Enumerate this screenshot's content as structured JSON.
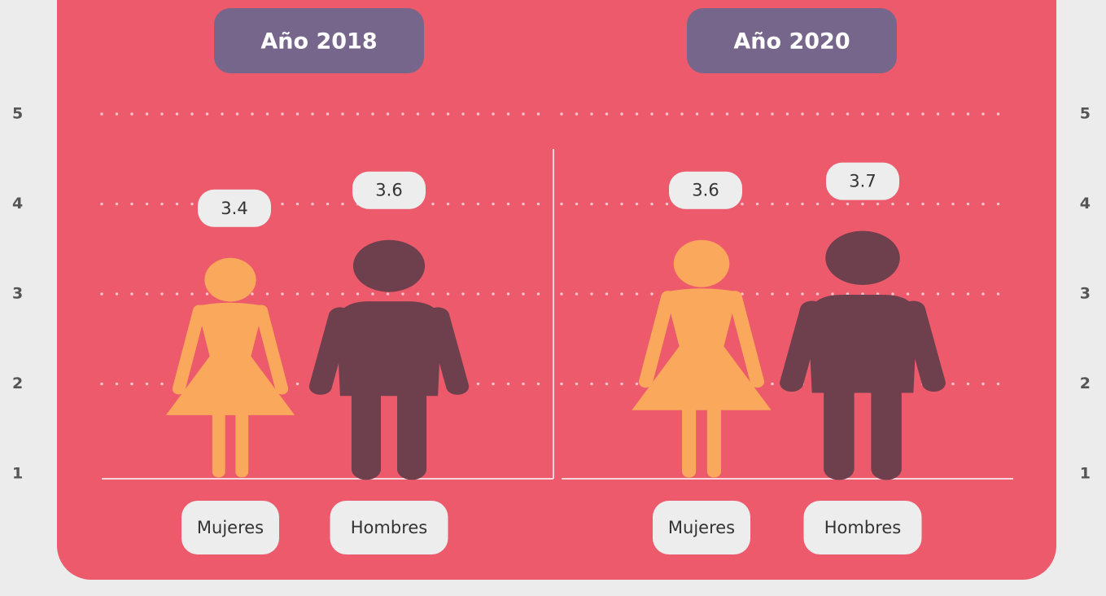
{
  "chart_data": [
    {
      "type": "pictogram",
      "title": "Año 2018",
      "categories": [
        "Mujeres",
        "Hombres"
      ],
      "values": [
        3.4,
        3.6
      ],
      "colors": [
        "#f9a85c",
        "#6e3f4c"
      ],
      "ylim": [
        1,
        5
      ],
      "yticks": [
        1,
        2,
        3,
        4,
        5
      ],
      "grid": true
    },
    {
      "type": "pictogram",
      "title": "Año 2020",
      "categories": [
        "Mujeres",
        "Hombres"
      ],
      "values": [
        3.6,
        3.7
      ],
      "colors": [
        "#f9a85c",
        "#6e3f4c"
      ],
      "ylim": [
        1,
        5
      ],
      "yticks": [
        1,
        2,
        3,
        4,
        5
      ],
      "grid": true
    }
  ]
}
